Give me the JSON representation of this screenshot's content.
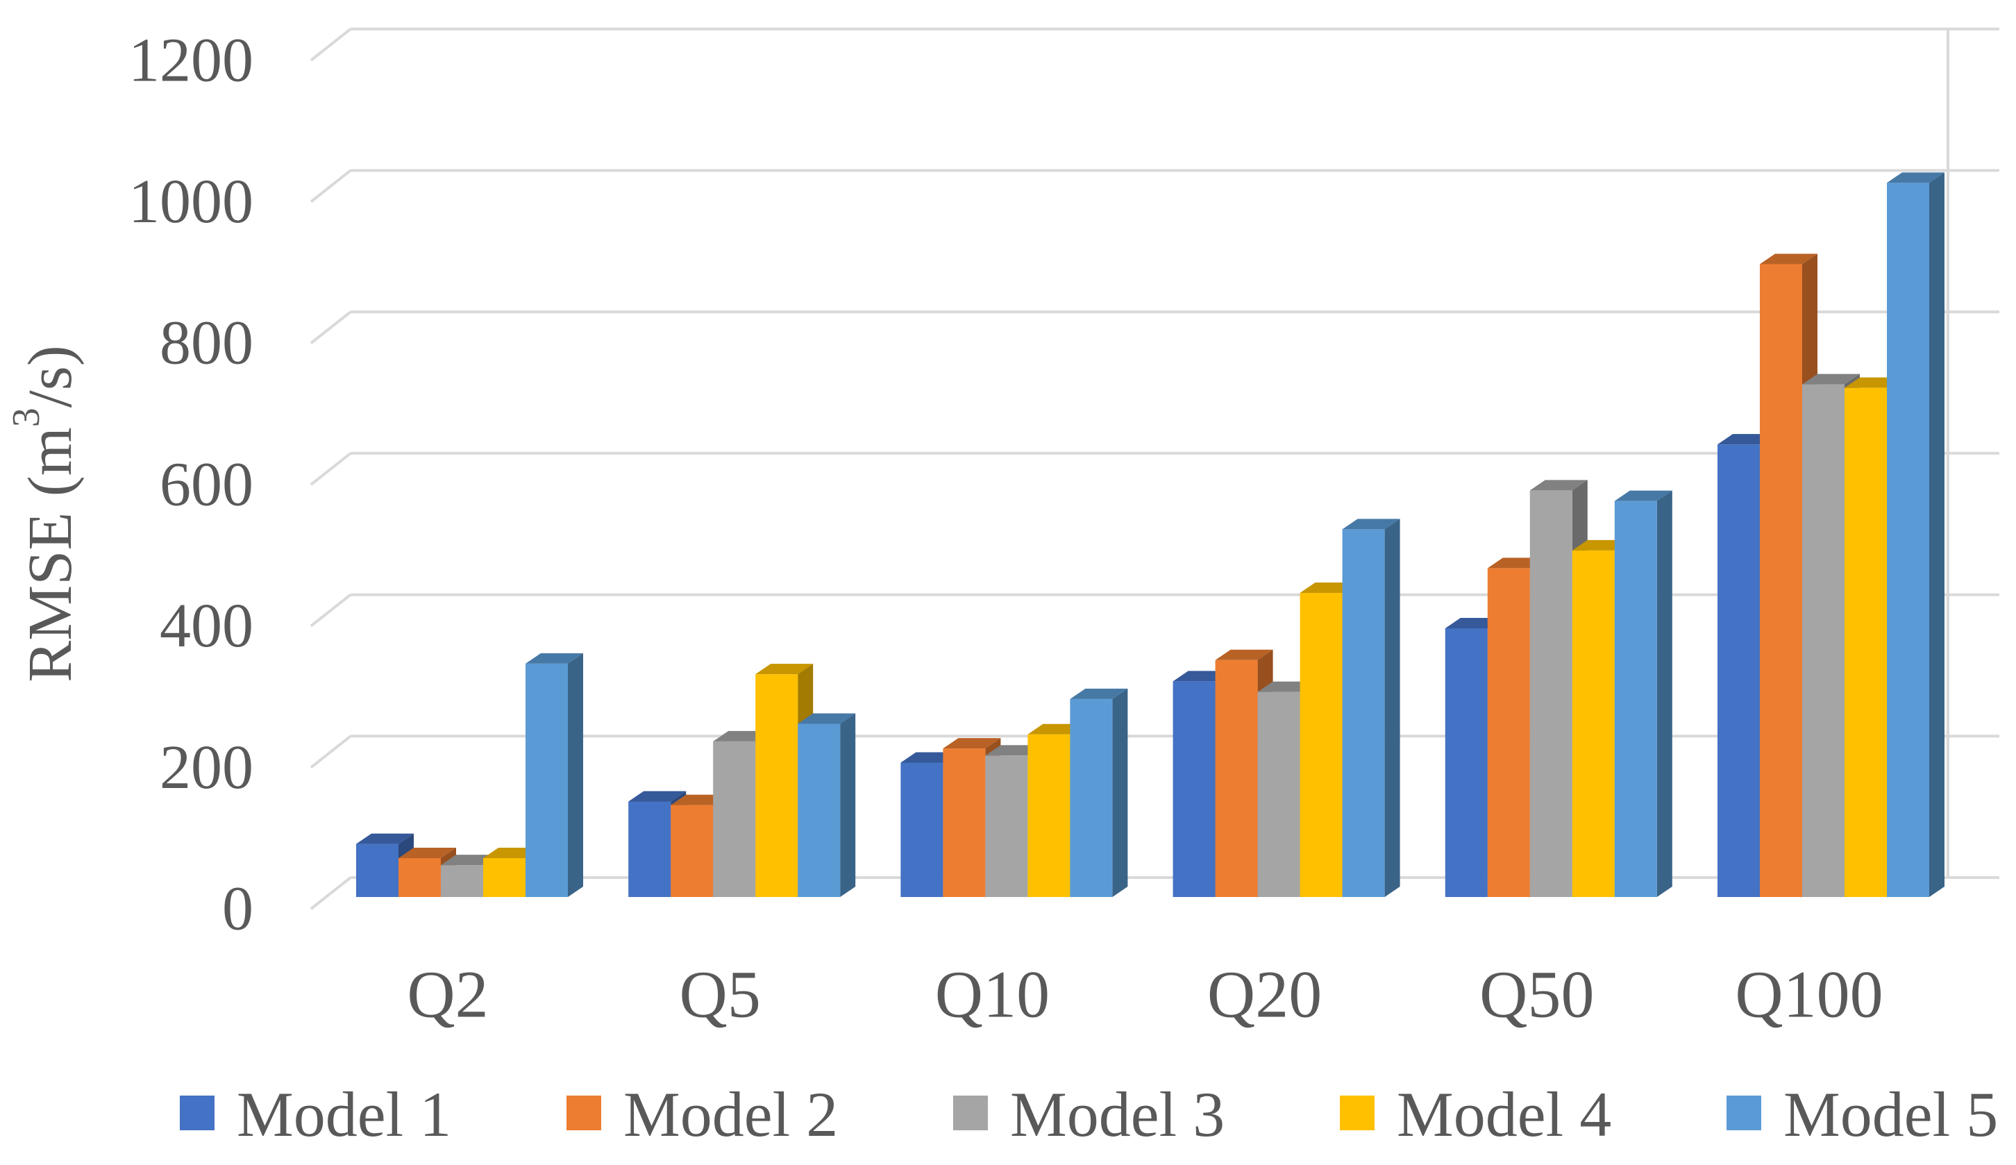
{
  "chart_data": {
    "type": "bar",
    "style": "3d-clustered-column",
    "title": "",
    "xlabel": "",
    "ylabel": "RMSE (m³/s)",
    "ylabel_parts": {
      "pre": "RMSE (m",
      "sup": "3",
      "post": "/s)"
    },
    "ylim": [
      0,
      1200
    ],
    "yticks": [
      0,
      200,
      400,
      600,
      800,
      1000,
      1200
    ],
    "ytick_labels": [
      "0",
      "200",
      "400",
      "600",
      "800",
      "1000",
      "1200"
    ],
    "grid": true,
    "legend_position": "bottom",
    "categories": [
      "Q2",
      "Q5",
      "Q10",
      "Q20",
      "Q50",
      "Q100"
    ],
    "series": [
      {
        "name": "Model 1",
        "color": "#4472C4",
        "values": [
          75,
          135,
          190,
          305,
          380,
          640
        ]
      },
      {
        "name": "Model 2",
        "color": "#ED7D31",
        "values": [
          55,
          130,
          210,
          335,
          465,
          895
        ]
      },
      {
        "name": "Model 3",
        "color": "#A5A5A5",
        "values": [
          45,
          220,
          200,
          290,
          575,
          725
        ]
      },
      {
        "name": "Model 4",
        "color": "#FFC000",
        "values": [
          55,
          315,
          230,
          430,
          490,
          720
        ]
      },
      {
        "name": "Model 5",
        "color": "#5B9BD5",
        "values": [
          330,
          245,
          280,
          520,
          560,
          1010
        ]
      }
    ],
    "colors": {
      "gridline": "#D9D9D9",
      "axis_text": "#595959",
      "background": "#FFFFFF"
    }
  }
}
